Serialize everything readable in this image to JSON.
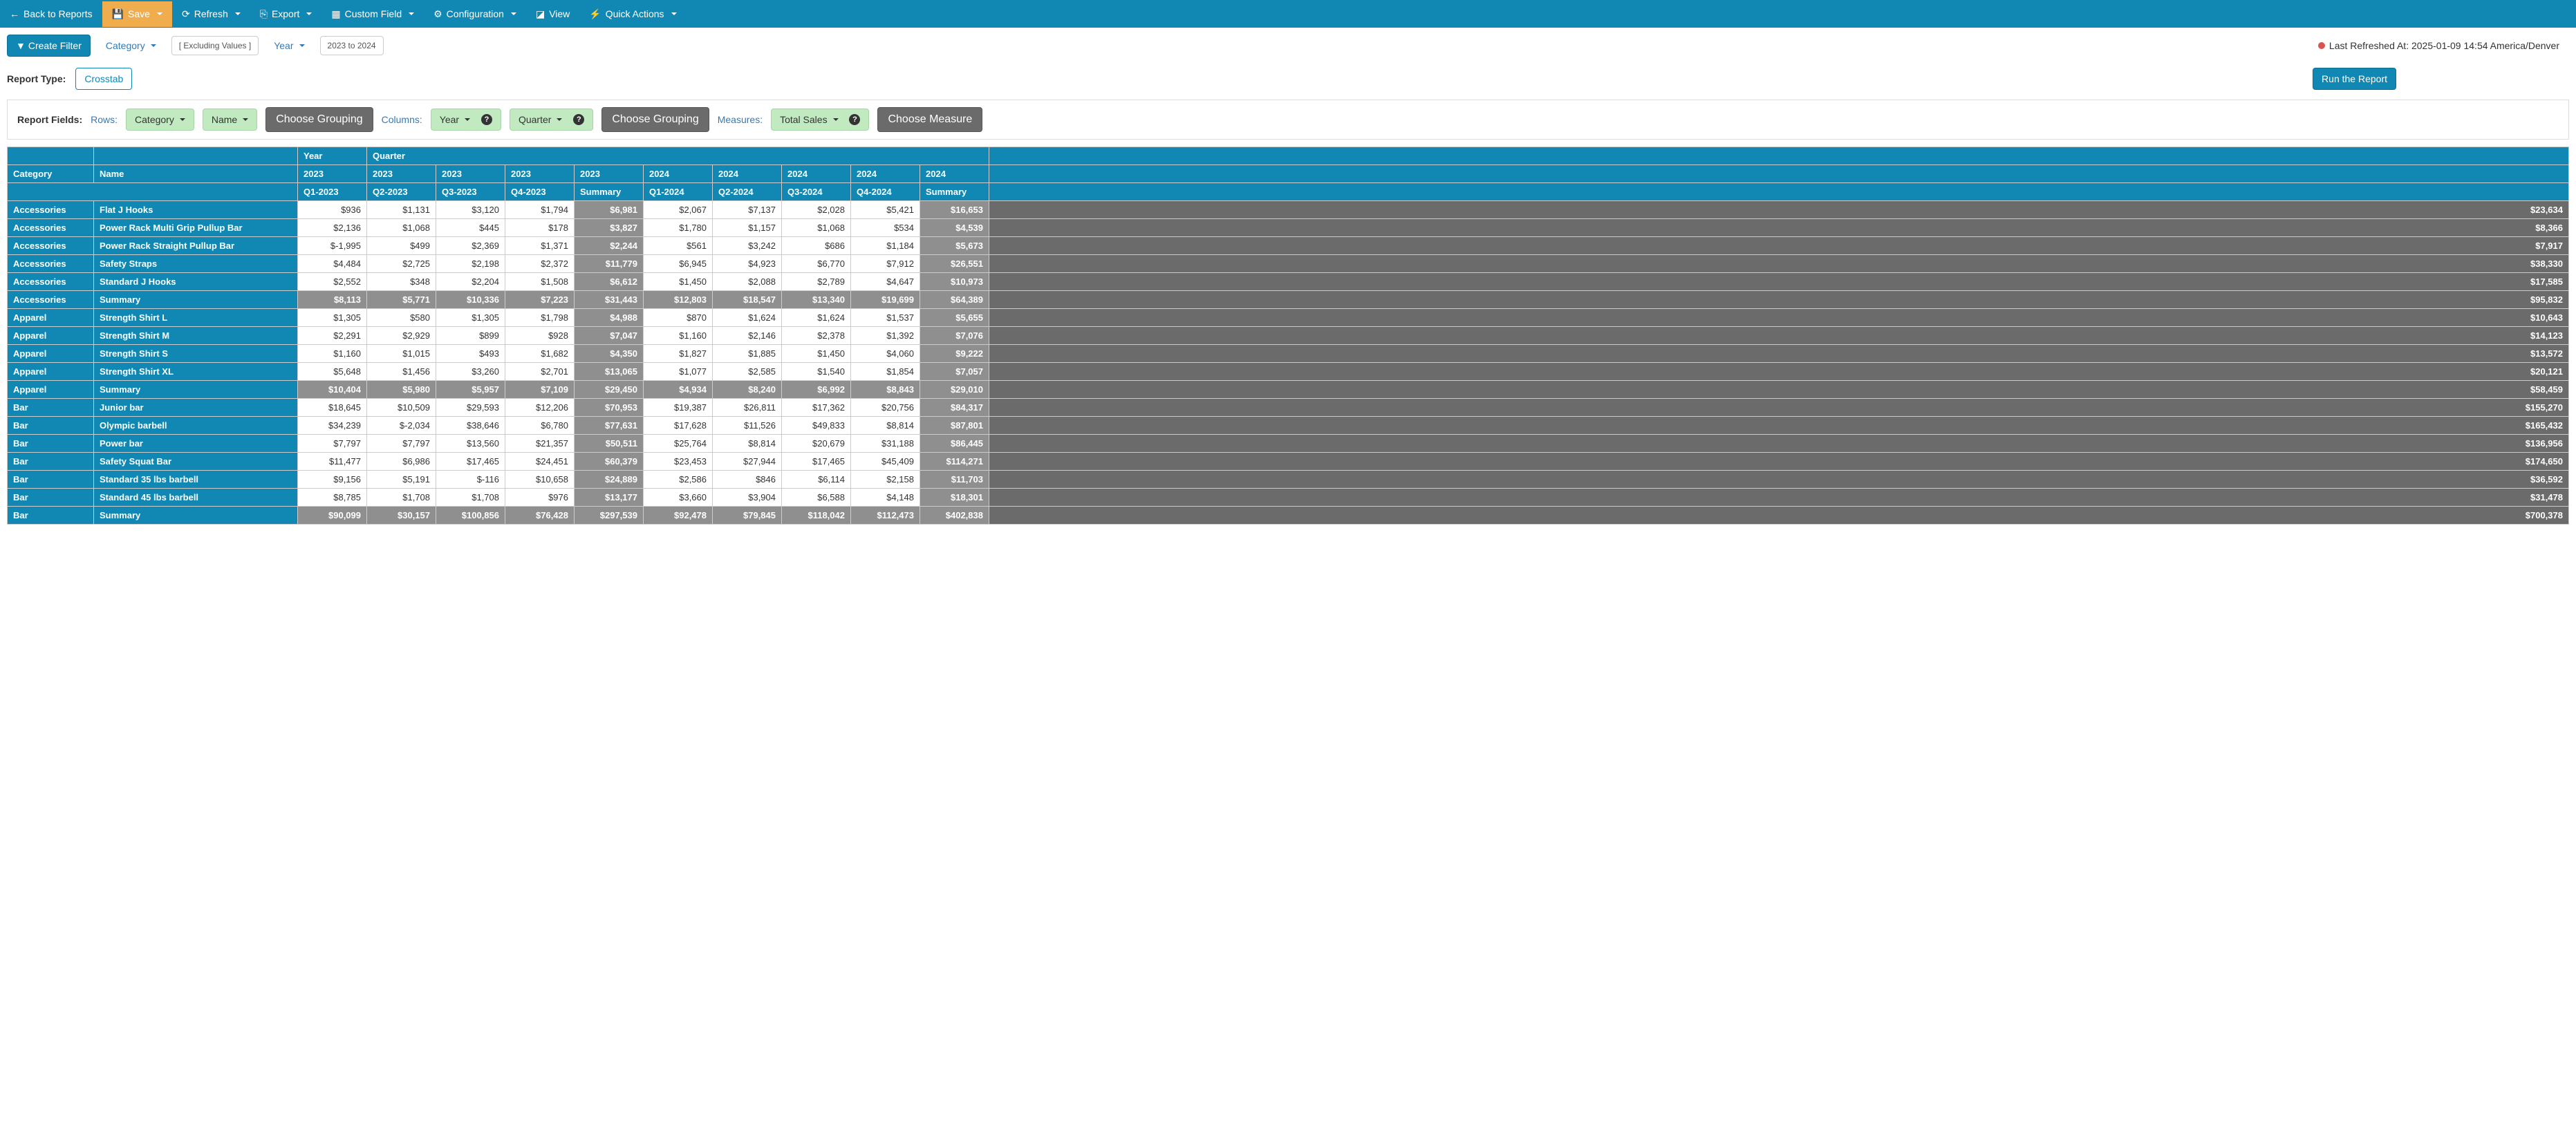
{
  "toolbar": {
    "back": "Back to Reports",
    "save": "Save",
    "refresh": "Refresh",
    "export": "Export",
    "custom_field": "Custom Field",
    "configuration": "Configuration",
    "view": "View",
    "quick_actions": "Quick Actions"
  },
  "filters": {
    "create_filter": "Create Filter",
    "category": "Category",
    "excluding": "[ Excluding Values ]",
    "year": "Year",
    "range": "2023 to 2024",
    "refreshed": "Last Refreshed At: 2025-01-09 14:54 America/Denver"
  },
  "report": {
    "type_label": "Report Type:",
    "type_value": "Crosstab",
    "run": "Run the Report"
  },
  "fields": {
    "label": "Report Fields:",
    "rows": "Rows:",
    "category": "Category",
    "name": "Name",
    "choose_grouping": "Choose Grouping",
    "columns": "Columns:",
    "year": "Year",
    "quarter": "Quarter",
    "measures": "Measures:",
    "total_sales": "Total Sales",
    "choose_measure": "Choose Measure"
  },
  "table": {
    "headers": {
      "year": "Year",
      "quarter": "Quarter",
      "category": "Category",
      "name": "Name",
      "summary": "Summary"
    },
    "years": [
      "2023",
      "2023",
      "2023",
      "2023",
      "2023",
      "2024",
      "2024",
      "2024",
      "2024",
      "2024"
    ],
    "quarters": [
      "Q1-2023",
      "Q2-2023",
      "Q3-2023",
      "Q4-2023",
      "Summary",
      "Q1-2024",
      "Q2-2024",
      "Q3-2024",
      "Q4-2024",
      "Summary"
    ],
    "rows": [
      {
        "cat": "Accessories",
        "name": "Flat J Hooks",
        "v": [
          "$936",
          "$1,131",
          "$3,120",
          "$1,794",
          "$6,981",
          "$2,067",
          "$7,137",
          "$2,028",
          "$5,421",
          "$16,653"
        ],
        "g": "$23,634"
      },
      {
        "cat": "Accessories",
        "name": "Power Rack Multi Grip Pullup Bar",
        "v": [
          "$2,136",
          "$1,068",
          "$445",
          "$178",
          "$3,827",
          "$1,780",
          "$1,157",
          "$1,068",
          "$534",
          "$4,539"
        ],
        "g": "$8,366"
      },
      {
        "cat": "Accessories",
        "name": "Power Rack Straight Pullup Bar",
        "v": [
          "$-1,995",
          "$499",
          "$2,369",
          "$1,371",
          "$2,244",
          "$561",
          "$3,242",
          "$686",
          "$1,184",
          "$5,673"
        ],
        "g": "$7,917"
      },
      {
        "cat": "Accessories",
        "name": "Safety Straps",
        "v": [
          "$4,484",
          "$2,725",
          "$2,198",
          "$2,372",
          "$11,779",
          "$6,945",
          "$4,923",
          "$6,770",
          "$7,912",
          "$26,551"
        ],
        "g": "$38,330"
      },
      {
        "cat": "Accessories",
        "name": "Standard J Hooks",
        "v": [
          "$2,552",
          "$348",
          "$2,204",
          "$1,508",
          "$6,612",
          "$1,450",
          "$2,088",
          "$2,789",
          "$4,647",
          "$10,973"
        ],
        "g": "$17,585"
      },
      {
        "cat": "Accessories",
        "name": "Summary",
        "summary": true,
        "v": [
          "$8,113",
          "$5,771",
          "$10,336",
          "$7,223",
          "$31,443",
          "$12,803",
          "$18,547",
          "$13,340",
          "$19,699",
          "$64,389"
        ],
        "g": "$95,832"
      },
      {
        "cat": "Apparel",
        "name": "Strength Shirt L",
        "v": [
          "$1,305",
          "$580",
          "$1,305",
          "$1,798",
          "$4,988",
          "$870",
          "$1,624",
          "$1,624",
          "$1,537",
          "$5,655"
        ],
        "g": "$10,643"
      },
      {
        "cat": "Apparel",
        "name": "Strength Shirt M",
        "v": [
          "$2,291",
          "$2,929",
          "$899",
          "$928",
          "$7,047",
          "$1,160",
          "$2,146",
          "$2,378",
          "$1,392",
          "$7,076"
        ],
        "g": "$14,123"
      },
      {
        "cat": "Apparel",
        "name": "Strength Shirt S",
        "v": [
          "$1,160",
          "$1,015",
          "$493",
          "$1,682",
          "$4,350",
          "$1,827",
          "$1,885",
          "$1,450",
          "$4,060",
          "$9,222"
        ],
        "g": "$13,572"
      },
      {
        "cat": "Apparel",
        "name": "Strength Shirt XL",
        "v": [
          "$5,648",
          "$1,456",
          "$3,260",
          "$2,701",
          "$13,065",
          "$1,077",
          "$2,585",
          "$1,540",
          "$1,854",
          "$7,057"
        ],
        "g": "$20,121"
      },
      {
        "cat": "Apparel",
        "name": "Summary",
        "summary": true,
        "v": [
          "$10,404",
          "$5,980",
          "$5,957",
          "$7,109",
          "$29,450",
          "$4,934",
          "$8,240",
          "$6,992",
          "$8,843",
          "$29,010"
        ],
        "g": "$58,459"
      },
      {
        "cat": "Bar",
        "name": "Junior bar",
        "v": [
          "$18,645",
          "$10,509",
          "$29,593",
          "$12,206",
          "$70,953",
          "$19,387",
          "$26,811",
          "$17,362",
          "$20,756",
          "$84,317"
        ],
        "g": "$155,270"
      },
      {
        "cat": "Bar",
        "name": "Olympic barbell",
        "v": [
          "$34,239",
          "$-2,034",
          "$38,646",
          "$6,780",
          "$77,631",
          "$17,628",
          "$11,526",
          "$49,833",
          "$8,814",
          "$87,801"
        ],
        "g": "$165,432"
      },
      {
        "cat": "Bar",
        "name": "Power bar",
        "v": [
          "$7,797",
          "$7,797",
          "$13,560",
          "$21,357",
          "$50,511",
          "$25,764",
          "$8,814",
          "$20,679",
          "$31,188",
          "$86,445"
        ],
        "g": "$136,956"
      },
      {
        "cat": "Bar",
        "name": "Safety Squat Bar",
        "v": [
          "$11,477",
          "$6,986",
          "$17,465",
          "$24,451",
          "$60,379",
          "$23,453",
          "$27,944",
          "$17,465",
          "$45,409",
          "$114,271"
        ],
        "g": "$174,650"
      },
      {
        "cat": "Bar",
        "name": "Standard 35 lbs barbell",
        "v": [
          "$9,156",
          "$5,191",
          "$-116",
          "$10,658",
          "$24,889",
          "$2,586",
          "$846",
          "$6,114",
          "$2,158",
          "$11,703"
        ],
        "g": "$36,592"
      },
      {
        "cat": "Bar",
        "name": "Standard 45 lbs barbell",
        "v": [
          "$8,785",
          "$1,708",
          "$1,708",
          "$976",
          "$13,177",
          "$3,660",
          "$3,904",
          "$6,588",
          "$4,148",
          "$18,301"
        ],
        "g": "$31,478"
      },
      {
        "cat": "Bar",
        "name": "Summary",
        "summary": true,
        "v": [
          "$90,099",
          "$30,157",
          "$100,856",
          "$76,428",
          "$297,539",
          "$92,478",
          "$79,845",
          "$118,042",
          "$112,473",
          "$402,838"
        ],
        "g": "$700,378"
      }
    ]
  }
}
